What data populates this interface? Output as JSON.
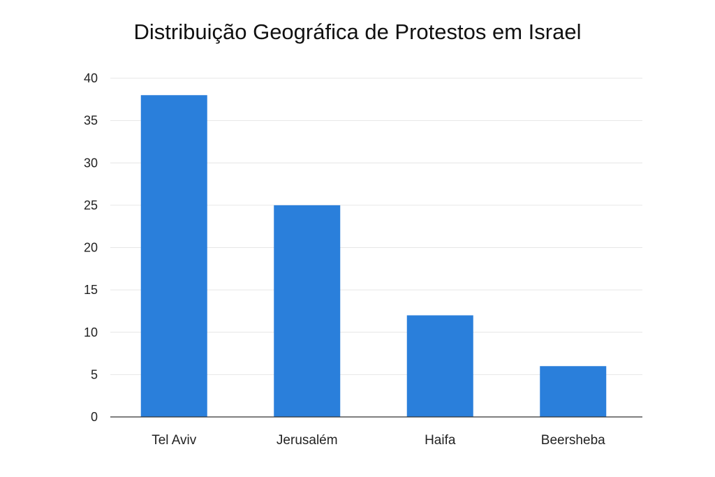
{
  "chart_data": {
    "type": "bar",
    "title": "Distribuição Geográfica de Protestos em Israel",
    "xlabel": "",
    "ylabel": "",
    "categories": [
      "Tel Aviv",
      "Jerusalém",
      "Haifa",
      "Beersheba"
    ],
    "values": [
      38,
      25,
      12,
      6
    ],
    "ylim": [
      0,
      40
    ],
    "yticks": [
      "0",
      "5",
      "10",
      "15",
      "20",
      "25",
      "30",
      "35",
      "40"
    ],
    "grid": true,
    "bar_color": "#2A7FDB",
    "grid_color": "#E6E6E6",
    "axis_color": "#333333"
  }
}
